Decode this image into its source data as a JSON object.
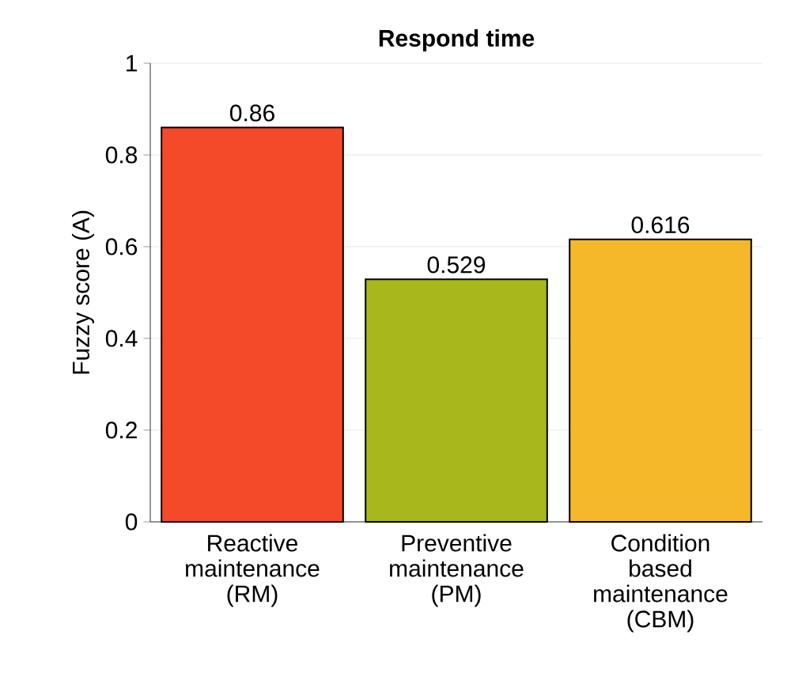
{
  "chart_data": {
    "type": "bar",
    "title": "Respond time",
    "ylabel": "Fuzzy score (A)",
    "categories": [
      "Reactive maintenance (RM)",
      "Preventive maintenance (PM)",
      "Condition based maintenance (CBM)"
    ],
    "values": [
      0.86,
      0.529,
      0.616
    ],
    "colors": [
      "#f44a2a",
      "#a8b81c",
      "#f5b82a"
    ],
    "ylim": [
      0,
      1
    ],
    "yticks": [
      0,
      0.2,
      0.4,
      0.6,
      0.8,
      1
    ],
    "grid": "y",
    "data_labels": true
  }
}
